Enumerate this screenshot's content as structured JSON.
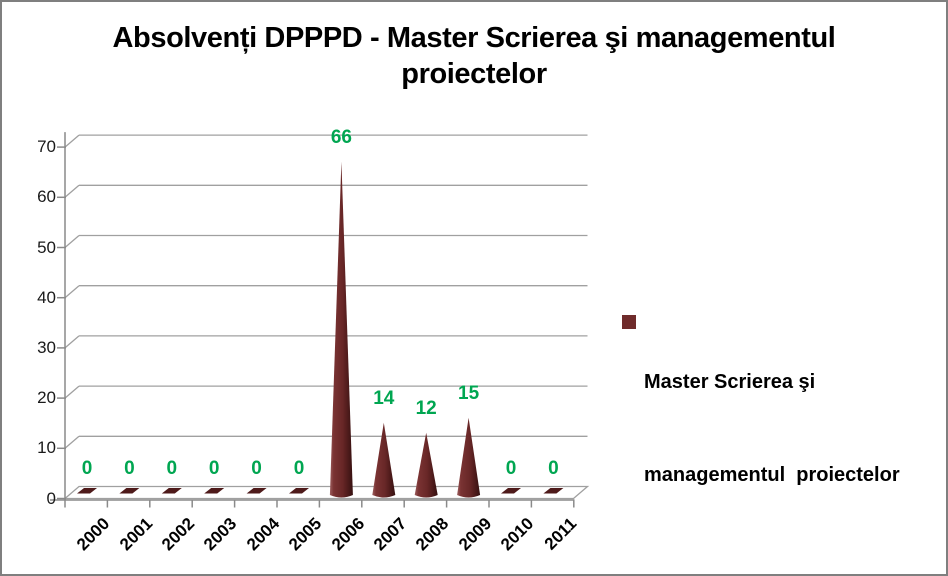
{
  "title": {
    "line1": "Absolvenți DPPPD - Master Scrierea şi managementul",
    "line2": "proiectelor"
  },
  "chart_data": {
    "type": "bar",
    "style": "3d-cone",
    "title": "Absolvenți DPPPD - Master Scrierea şi managementul proiectelor",
    "categories": [
      "2000",
      "2001",
      "2002",
      "2003",
      "2004",
      "2005",
      "2006",
      "2007",
      "2008",
      "2009",
      "2010",
      "2011"
    ],
    "series": [
      {
        "name": "Master Scrierea şi managementul  proiectelor",
        "values": [
          0,
          0,
          0,
          0,
          0,
          0,
          66,
          14,
          12,
          15,
          0,
          0
        ]
      }
    ],
    "data_labels_shown": true,
    "xlabel": "",
    "ylabel": "",
    "ylim": [
      0,
      70
    ],
    "yticks": [
      0,
      10,
      20,
      30,
      40,
      50,
      60,
      70
    ],
    "grid": true,
    "legend_position": "right"
  },
  "legend": {
    "lines": [
      "Master Scrierea şi",
      "managementul  proiectelor"
    ],
    "marker_color": "#6F2B2B"
  },
  "colors": {
    "data_label": "#00A651",
    "gridline": "#A0A0A0",
    "axis": "#8A8A8A",
    "axis_text": "#1A1A1A",
    "floor_fill": "#FFFFFF",
    "cone_highlight": "#9C5E5E",
    "cone_light": "#7A3333",
    "cone_mid": "#682727",
    "cone_shade": "#531D1D",
    "cone_dark": "#351010",
    "zero_marker": "#4E1A1A",
    "frame_border": "#7F7F7F",
    "background": "#FFFFFF"
  }
}
